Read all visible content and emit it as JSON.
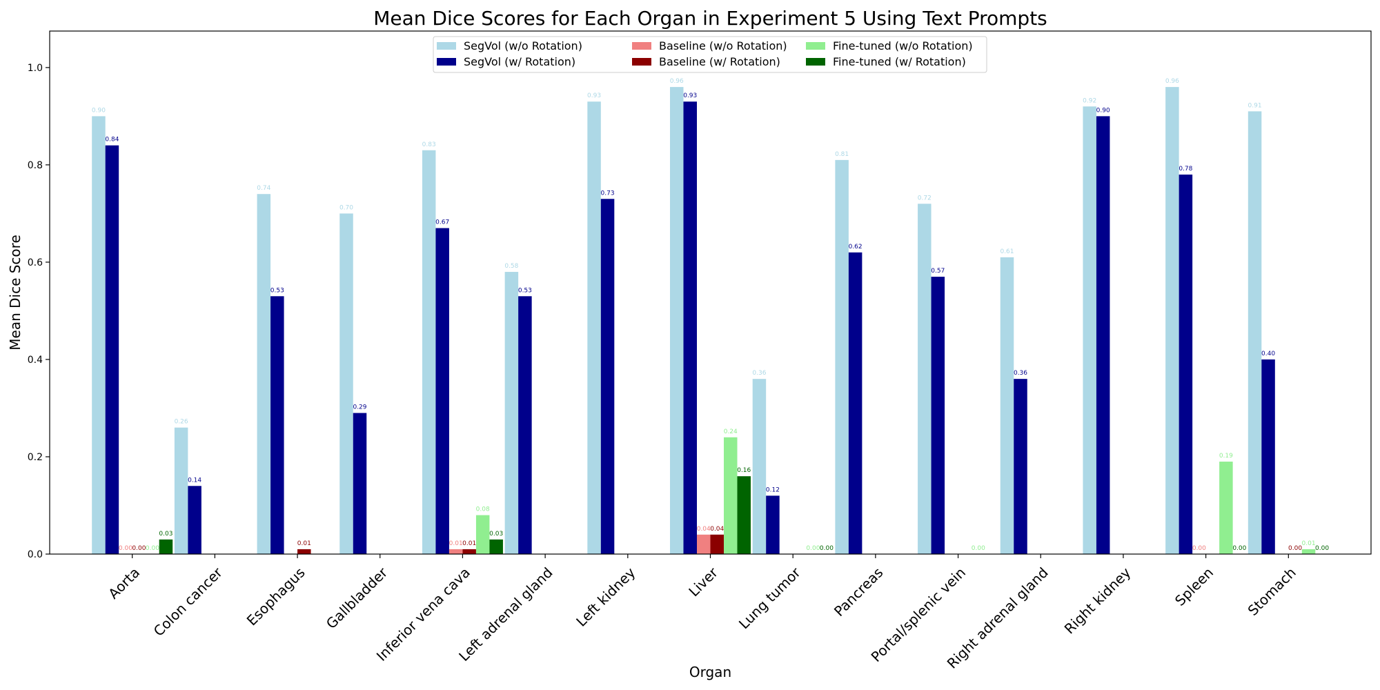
{
  "chart_data": {
    "type": "bar",
    "title": "Mean Dice Scores for Each Organ in Experiment 5 Using Text Prompts",
    "xlabel": "Organ",
    "ylabel": "Mean Dice Score",
    "ylim": [
      0,
      1.075
    ],
    "yticks": [
      "0.0",
      "0.2",
      "0.4",
      "0.6",
      "0.8",
      "1.0"
    ],
    "grid": false,
    "legend_position": "upper center",
    "categories": [
      "Aorta",
      "Colon cancer",
      "Esophagus",
      "Gallbladder",
      "Inferior vena cava",
      "Left adrenal gland",
      "Left kidney",
      "Liver",
      "Lung tumor",
      "Pancreas",
      "Portal/splenic vein",
      "Right adrenal gland",
      "Right kidney",
      "Spleen",
      "Stomach"
    ],
    "series": [
      {
        "name": "SegVol (w/o Rotation)",
        "color": "#add8e6",
        "values": [
          0.9,
          0.26,
          0.74,
          0.7,
          0.83,
          0.58,
          0.93,
          0.96,
          0.36,
          0.81,
          0.72,
          0.61,
          0.92,
          0.96,
          0.91
        ],
        "labels": [
          "0.90",
          "0.26",
          "0.74",
          "0.70",
          "0.83",
          "0.58",
          "0.93",
          "0.96",
          "0.36",
          "0.81",
          "0.72",
          "0.61",
          "0.92",
          "0.96",
          "0.91"
        ]
      },
      {
        "name": "SegVol (w/ Rotation)",
        "color": "#00008b",
        "values": [
          0.84,
          0.14,
          0.53,
          0.29,
          0.67,
          0.53,
          0.73,
          0.93,
          0.12,
          0.62,
          0.57,
          0.36,
          0.9,
          0.78,
          0.4
        ],
        "labels": [
          "0.84",
          "0.14",
          "0.53",
          "0.29",
          "0.67",
          "0.53",
          "0.73",
          "0.93",
          "0.12",
          "0.62",
          "0.57",
          "0.36",
          "0.90",
          "0.78",
          "0.40"
        ]
      },
      {
        "name": "Baseline (w/o Rotation)",
        "color": "#f08080",
        "values": [
          0.0,
          null,
          null,
          null,
          0.01,
          null,
          null,
          0.04,
          null,
          null,
          null,
          null,
          null,
          0.0,
          null
        ],
        "labels": [
          "0.00",
          null,
          null,
          null,
          "0.01",
          null,
          null,
          "0.04",
          null,
          null,
          null,
          null,
          null,
          "0.00",
          null
        ]
      },
      {
        "name": "Baseline (w/ Rotation)",
        "color": "#8b0000",
        "values": [
          0.0,
          null,
          0.01,
          null,
          0.01,
          null,
          null,
          0.04,
          null,
          null,
          null,
          null,
          null,
          null,
          0.0
        ],
        "labels": [
          "0.00",
          null,
          "0.01",
          null,
          "0.01",
          null,
          null,
          "0.04",
          null,
          null,
          null,
          null,
          null,
          null,
          "0.00"
        ]
      },
      {
        "name": "Fine-tuned (w/o Rotation)",
        "color": "#90ee90",
        "values": [
          0.0,
          null,
          null,
          null,
          0.08,
          null,
          null,
          0.24,
          0.0,
          null,
          0.0,
          null,
          null,
          0.19,
          0.01
        ],
        "labels": [
          "0.00",
          null,
          null,
          null,
          "0.08",
          null,
          null,
          "0.24",
          "0.00",
          null,
          "0.00",
          null,
          null,
          "0.19",
          "0.01"
        ]
      },
      {
        "name": "Fine-tuned (w/ Rotation)",
        "color": "#006400",
        "values": [
          0.03,
          null,
          null,
          null,
          0.03,
          null,
          null,
          0.16,
          0.0,
          null,
          null,
          null,
          null,
          0.0,
          0.0
        ],
        "labels": [
          "0.03",
          null,
          null,
          null,
          "0.03",
          null,
          null,
          "0.16",
          "0.00",
          null,
          null,
          null,
          null,
          "0.00",
          "0.00"
        ]
      }
    ]
  }
}
